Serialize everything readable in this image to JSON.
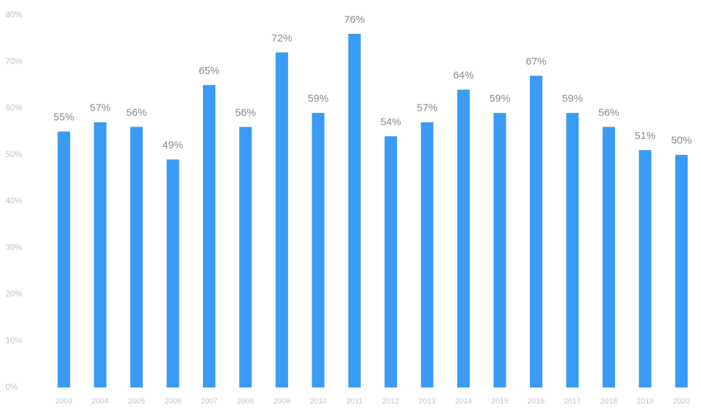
{
  "chart_data": {
    "type": "bar",
    "categories": [
      "2003",
      "2004",
      "2005",
      "2006",
      "2007",
      "2008",
      "2009",
      "2010",
      "2011",
      "2012",
      "2013",
      "2014",
      "2015",
      "2016",
      "2017",
      "2018",
      "2019",
      "2020"
    ],
    "values": [
      55,
      57,
      56,
      49,
      65,
      56,
      72,
      59,
      76,
      54,
      57,
      64,
      59,
      67,
      59,
      56,
      51,
      50
    ],
    "value_labels": [
      "55%",
      "57%",
      "56%",
      "49%",
      "65%",
      "56%",
      "72%",
      "59%",
      "76%",
      "54%",
      "57%",
      "64%",
      "59%",
      "67%",
      "59%",
      "56%",
      "51%",
      "50%"
    ],
    "color": "#3a9bf4",
    "ylim": [
      0,
      80
    ],
    "yticks": [
      {
        "value": 0,
        "label": "0%"
      },
      {
        "value": 10,
        "label": "10%"
      },
      {
        "value": 20,
        "label": "20%"
      },
      {
        "value": 30,
        "label": "30%"
      },
      {
        "value": 40,
        "label": "40%"
      },
      {
        "value": 50,
        "label": "50%"
      },
      {
        "value": 60,
        "label": "60%"
      },
      {
        "value": 70,
        "label": "70%"
      },
      {
        "value": 80,
        "label": "80%"
      }
    ],
    "grid": false
  }
}
